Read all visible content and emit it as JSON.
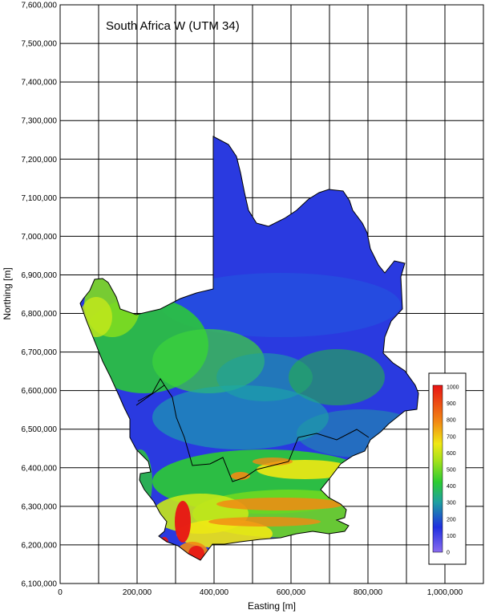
{
  "map": {
    "title": "South Africa W (UTM 34)",
    "x_axis": {
      "label": "Easting [m]",
      "range": [
        0,
        1100000
      ],
      "ticks": [
        {
          "value": 0,
          "label": "0"
        },
        {
          "value": 200000,
          "label": "200,000"
        },
        {
          "value": 400000,
          "label": "400,000"
        },
        {
          "value": 600000,
          "label": "600,000"
        },
        {
          "value": 800000,
          "label": "800,000"
        },
        {
          "value": 1000000,
          "label": "1,000,000"
        }
      ],
      "grid_step": 100000
    },
    "y_axis": {
      "label": "Northing [m]",
      "range": [
        6100000,
        7600000
      ],
      "ticks": [
        {
          "value": 7600000,
          "label": "7,600,000"
        },
        {
          "value": 7500000,
          "label": "7,500,000"
        },
        {
          "value": 7400000,
          "label": "7,400,000"
        },
        {
          "value": 7300000,
          "label": "7,300,000"
        },
        {
          "value": 7200000,
          "label": "7,200,000"
        },
        {
          "value": 7100000,
          "label": "7,100,000"
        },
        {
          "value": 7000000,
          "label": "7,000,000"
        },
        {
          "value": 6900000,
          "label": "6,900,000"
        },
        {
          "value": 6800000,
          "label": "6,800,000"
        },
        {
          "value": 6700000,
          "label": "6,700,000"
        },
        {
          "value": 6600000,
          "label": "6,600,000"
        },
        {
          "value": 6500000,
          "label": "6,500,000"
        },
        {
          "value": 6400000,
          "label": "6,400,000"
        },
        {
          "value": 6300000,
          "label": "6,300,000"
        },
        {
          "value": 6200000,
          "label": "6,200,000"
        },
        {
          "value": 6100000,
          "label": "6,100,000"
        }
      ],
      "grid_step": 100000
    },
    "grid": true,
    "colors": {
      "low": "#8a6cf0",
      "blue": "#1f2fe0",
      "teal": "#1ea0a0",
      "green": "#2ccc33",
      "lime": "#a6e21a",
      "yellow": "#f0e814",
      "orange": "#f28a14",
      "red": "#e81414",
      "border": "#000000"
    },
    "legend": {
      "placement": "right",
      "range": [
        0,
        1000
      ],
      "ticks": [
        {
          "value": 1000,
          "label": "1000"
        },
        {
          "value": 900,
          "label": "900"
        },
        {
          "value": 800,
          "label": "800"
        },
        {
          "value": 700,
          "label": "700"
        },
        {
          "value": 600,
          "label": "600"
        },
        {
          "value": 500,
          "label": "500"
        },
        {
          "value": 400,
          "label": "400"
        },
        {
          "value": 300,
          "label": "300"
        },
        {
          "value": 200,
          "label": "200"
        },
        {
          "value": 100,
          "label": "100"
        },
        {
          "value": 0,
          "label": "0"
        }
      ]
    }
  }
}
